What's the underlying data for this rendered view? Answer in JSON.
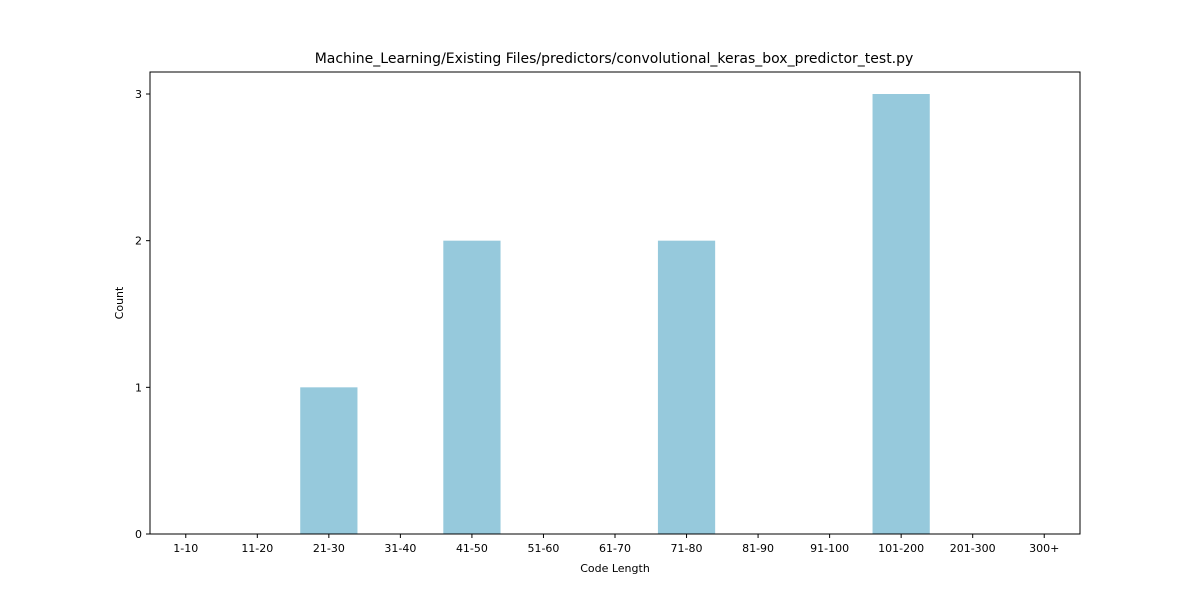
{
  "chart_data": {
    "type": "bar",
    "title": "Machine_Learning/Existing Files/predictors/convolutional_keras_box_predictor_test.py",
    "xlabel": "Code Length",
    "ylabel": "Count",
    "categories": [
      "1-10",
      "11-20",
      "21-30",
      "31-40",
      "41-50",
      "51-60",
      "61-70",
      "71-80",
      "81-90",
      "91-100",
      "101-200",
      "201-300",
      "300+"
    ],
    "values": [
      0,
      0,
      1,
      0,
      2,
      0,
      0,
      2,
      0,
      0,
      3,
      0,
      0
    ],
    "ylim": [
      0,
      3.15
    ],
    "yticks": [
      0,
      1,
      2,
      3
    ],
    "grid": false,
    "bar_color": "#96c9dc"
  }
}
